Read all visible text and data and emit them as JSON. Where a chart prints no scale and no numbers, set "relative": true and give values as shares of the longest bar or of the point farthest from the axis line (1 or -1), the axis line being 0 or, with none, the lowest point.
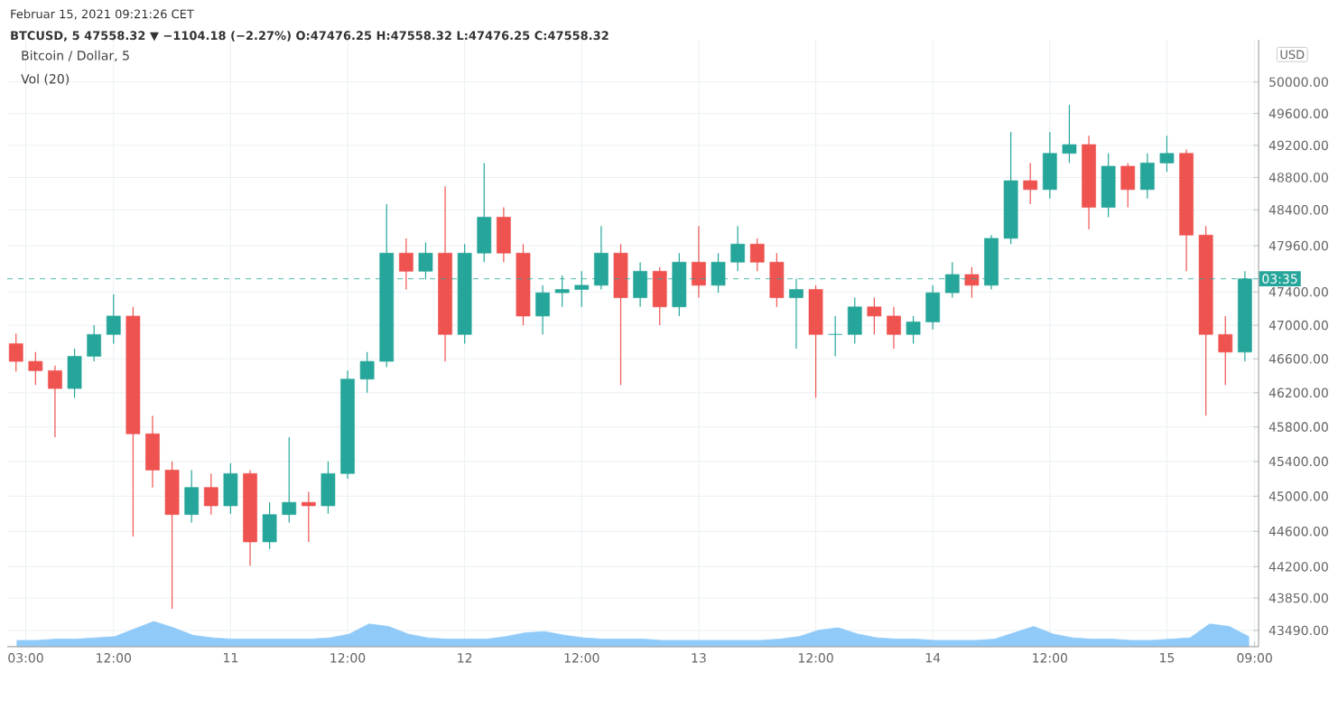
{
  "chart_data": [
    {
      "type": "candlestick",
      "title": "Bitcoin / Dollar, 5",
      "ylabel": "USD",
      "annotations": [
        "Februar 15, 2021 09:21:26 CET",
        "BTCUSD, 5  47558.32 ▼ −1104.18 (−2.27%) O:47476.25 H:47558.32 L:47476.25 C:47558.32",
        "03:35"
      ],
      "x": [
        "2021-02-10T02:00",
        "2021-02-10T04:00",
        "2021-02-10T06:00",
        "2021-02-10T08:00",
        "2021-02-10T10:00",
        "2021-02-10T12:00",
        "2021-02-10T14:00",
        "2021-02-10T16:00",
        "2021-02-10T18:00",
        "2021-02-10T20:00",
        "2021-02-10T22:00",
        "2021-02-11T00:00",
        "2021-02-11T02:00",
        "2021-02-11T04:00",
        "2021-02-11T06:00",
        "2021-02-11T08:00",
        "2021-02-11T10:00",
        "2021-02-11T12:00",
        "2021-02-11T14:00",
        "2021-02-11T16:00",
        "2021-02-11T18:00",
        "2021-02-11T20:00",
        "2021-02-11T22:00",
        "2021-02-12T00:00",
        "2021-02-12T02:00",
        "2021-02-12T04:00",
        "2021-02-12T06:00",
        "2021-02-12T08:00",
        "2021-02-12T10:00",
        "2021-02-12T12:00",
        "2021-02-12T14:00",
        "2021-02-12T16:00",
        "2021-02-12T18:00",
        "2021-02-12T20:00",
        "2021-02-12T22:00",
        "2021-02-13T00:00",
        "2021-02-13T02:00",
        "2021-02-13T04:00",
        "2021-02-13T06:00",
        "2021-02-13T08:00",
        "2021-02-13T10:00",
        "2021-02-13T12:00",
        "2021-02-13T14:00",
        "2021-02-13T16:00",
        "2021-02-13T18:00",
        "2021-02-13T20:00",
        "2021-02-13T22:00",
        "2021-02-14T00:00",
        "2021-02-14T02:00",
        "2021-02-14T04:00",
        "2021-02-14T06:00",
        "2021-02-14T08:00",
        "2021-02-14T10:00",
        "2021-02-14T12:00",
        "2021-02-14T14:00",
        "2021-02-14T16:00",
        "2021-02-14T18:00",
        "2021-02-14T20:00",
        "2021-02-14T22:00",
        "2021-02-15T00:00",
        "2021-02-15T02:00",
        "2021-02-15T04:00",
        "2021-02-15T06:00",
        "2021-02-15T08:00"
      ],
      "ohlc": [
        [
          46780,
          46900,
          46450,
          46570
        ],
        [
          46570,
          46680,
          46290,
          46460
        ],
        [
          46460,
          46520,
          45680,
          46250
        ],
        [
          46250,
          46720,
          46140,
          46630
        ],
        [
          46630,
          47000,
          46570,
          46890
        ],
        [
          46890,
          47370,
          46780,
          47110
        ],
        [
          47110,
          47220,
          44540,
          45720
        ],
        [
          45720,
          45930,
          45100,
          45300
        ],
        [
          45300,
          45400,
          43730,
          44790
        ],
        [
          44790,
          45300,
          44700,
          45100
        ],
        [
          45100,
          45260,
          44790,
          44890
        ],
        [
          44890,
          45380,
          44800,
          45260
        ],
        [
          45260,
          45300,
          44210,
          44480
        ],
        [
          44480,
          44930,
          44400,
          44790
        ],
        [
          44790,
          45680,
          44700,
          44930
        ],
        [
          44930,
          45050,
          44480,
          44890
        ],
        [
          44890,
          45400,
          44800,
          45260
        ],
        [
          45260,
          46460,
          45200,
          46360
        ],
        [
          46360,
          46680,
          46200,
          46570
        ],
        [
          46570,
          48470,
          46500,
          47870
        ],
        [
          47870,
          48050,
          47430,
          47650
        ],
        [
          47650,
          48000,
          47550,
          47870
        ],
        [
          47870,
          48690,
          46570,
          46890
        ],
        [
          46890,
          47980,
          46780,
          47870
        ],
        [
          47870,
          48980,
          47760,
          48310
        ],
        [
          48310,
          48430,
          47760,
          47870
        ],
        [
          47870,
          47980,
          47000,
          47110
        ],
        [
          47110,
          47480,
          46890,
          47390
        ],
        [
          47390,
          47600,
          47220,
          47430
        ],
        [
          47430,
          47650,
          47220,
          47480
        ],
        [
          47480,
          48200,
          47430,
          47870
        ],
        [
          47870,
          47980,
          46290,
          47330
        ],
        [
          47330,
          47760,
          47220,
          47650
        ],
        [
          47650,
          47700,
          47000,
          47220
        ],
        [
          47220,
          47870,
          47110,
          47760
        ],
        [
          47760,
          48200,
          47330,
          47480
        ],
        [
          47480,
          47870,
          47390,
          47760
        ],
        [
          47760,
          48200,
          47650,
          47980
        ],
        [
          47980,
          48050,
          47650,
          47760
        ],
        [
          47760,
          47870,
          47220,
          47330
        ],
        [
          47330,
          47560,
          46720,
          47430
        ],
        [
          47430,
          47480,
          46140,
          46890
        ],
        [
          46890,
          47110,
          46630,
          46890
        ],
        [
          46890,
          47330,
          46780,
          47220
        ],
        [
          47220,
          47330,
          46890,
          47110
        ],
        [
          47110,
          47220,
          46720,
          46890
        ],
        [
          46890,
          47110,
          46780,
          47040
        ],
        [
          47040,
          47480,
          46950,
          47390
        ],
        [
          47390,
          47760,
          47330,
          47610
        ],
        [
          47610,
          47700,
          47330,
          47480
        ],
        [
          47480,
          48090,
          47430,
          48050
        ],
        [
          48050,
          49370,
          47980,
          48760
        ],
        [
          48760,
          48980,
          48470,
          48650
        ],
        [
          48650,
          49370,
          48540,
          49100
        ],
        [
          49100,
          49710,
          48980,
          49210
        ],
        [
          49210,
          49320,
          48160,
          48430
        ],
        [
          48430,
          49100,
          48310,
          48940
        ],
        [
          48940,
          48980,
          48430,
          48650
        ],
        [
          48650,
          49100,
          48540,
          48980
        ],
        [
          48980,
          49320,
          48870,
          49100
        ],
        [
          49100,
          49150,
          47650,
          48090
        ],
        [
          48090,
          48200,
          45930,
          46890
        ],
        [
          46890,
          47110,
          46290,
          46680
        ],
        [
          46680,
          47650,
          46570,
          47558.32
        ]
      ],
      "xlim": [
        "2021-02-10T01:06",
        "2021-02-15T09:24"
      ],
      "xticks": [
        {
          "value": "2021-02-10T03:00",
          "label": "03:00"
        },
        {
          "value": "2021-02-10T12:00",
          "label": "12:00"
        },
        {
          "value": "2021-02-11",
          "label": "11"
        },
        {
          "value": "2021-02-11T12:00",
          "label": "12:00"
        },
        {
          "value": "2021-02-12",
          "label": "12"
        },
        {
          "value": "2021-02-12T12:00",
          "label": "12:00"
        },
        {
          "value": "2021-02-13",
          "label": "13"
        },
        {
          "value": "2021-02-13T12:00",
          "label": "12:00"
        },
        {
          "value": "2021-02-14",
          "label": "14"
        },
        {
          "value": "2021-02-14T12:00",
          "label": "12:00"
        },
        {
          "value": "2021-02-15",
          "label": "15"
        },
        {
          "value": "2021-02-15T09:00",
          "label": "09:00"
        }
      ],
      "ylim": [
        43310,
        50540
      ],
      "log": true,
      "yticks": [
        {
          "value": 50000,
          "label": "50000.00"
        },
        {
          "value": 49600,
          "label": "49600.00"
        },
        {
          "value": 49200,
          "label": "49200.00"
        },
        {
          "value": 48800,
          "label": "48800.00"
        },
        {
          "value": 48400,
          "label": "48400.00"
        },
        {
          "value": 47960,
          "label": "47960.00"
        },
        {
          "value": 47400,
          "label": "47400.00"
        },
        {
          "value": 47000,
          "label": "47000.00"
        },
        {
          "value": 46600,
          "label": "46600.00"
        },
        {
          "value": 46200,
          "label": "46200.00"
        },
        {
          "value": 45800,
          "label": "45800.00"
        },
        {
          "value": 45400,
          "label": "45400.00"
        },
        {
          "value": 45000,
          "label": "45000.00"
        },
        {
          "value": 44600,
          "label": "44600.00"
        },
        {
          "value": 44200,
          "label": "44200.00"
        },
        {
          "value": 43850,
          "label": "43850.00"
        },
        {
          "value": 43490,
          "label": "43490.00"
        }
      ],
      "grid": true,
      "ref_lines": [
        {
          "axis": "y",
          "value": 47558.32,
          "color": "#26a69a",
          "line_style": "dashed"
        }
      ]
    },
    {
      "type": "area",
      "title": "Vol (20)",
      "relative": true,
      "color": "#90caf9",
      "categories": [
        null,
        null,
        null,
        null,
        null,
        null,
        null,
        null,
        null,
        null,
        null,
        null,
        null,
        null,
        null,
        null,
        null,
        null,
        null,
        null,
        null,
        null,
        null,
        null,
        null,
        null,
        null,
        null,
        null,
        null,
        null,
        null,
        null,
        null,
        null,
        null,
        null,
        null,
        null,
        null,
        null,
        null,
        null,
        null,
        null,
        null,
        null,
        null,
        null,
        null,
        null,
        null,
        null,
        null,
        null,
        null,
        null,
        null,
        null,
        null,
        null,
        null,
        null,
        null
      ],
      "values": [
        0.25,
        0.25,
        0.3,
        0.3,
        0.35,
        0.4,
        0.7,
        1,
        0.75,
        0.45,
        0.35,
        0.3,
        0.3,
        0.3,
        0.3,
        0.3,
        0.35,
        0.5,
        0.9,
        0.8,
        0.5,
        0.35,
        0.3,
        0.3,
        0.3,
        0.4,
        0.55,
        0.6,
        0.45,
        0.35,
        0.3,
        0.3,
        0.3,
        0.25,
        0.25,
        0.25,
        0.25,
        0.25,
        0.25,
        0.3,
        0.4,
        0.65,
        0.75,
        0.5,
        0.35,
        0.3,
        0.3,
        0.25,
        0.25,
        0.25,
        0.3,
        0.55,
        0.8,
        0.5,
        0.35,
        0.3,
        0.3,
        0.25,
        0.25,
        0.3,
        0.35,
        0.9,
        0.8,
        0.4
      ]
    }
  ]
}
